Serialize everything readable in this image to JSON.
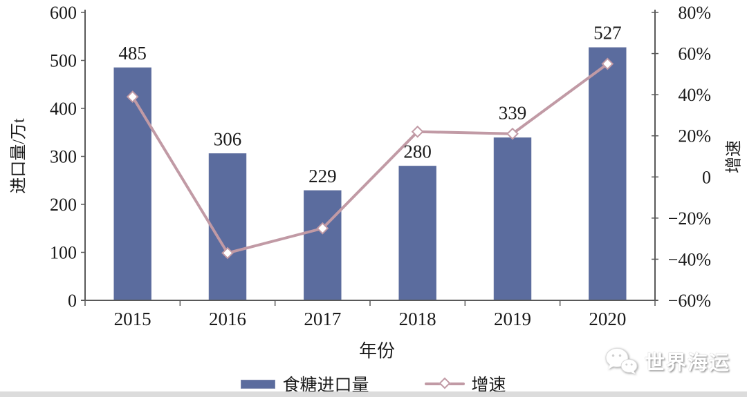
{
  "chart_data": {
    "type": "combo-bar-line",
    "title": "",
    "categories": [
      "2015",
      "2016",
      "2017",
      "2018",
      "2019",
      "2020"
    ],
    "series": [
      {
        "name": "食糖进口量",
        "type": "bar",
        "axis": "left",
        "unit": "万t",
        "values": [
          485,
          306,
          229,
          280,
          339,
          527
        ],
        "color": "#5b6c9e"
      },
      {
        "name": "增速",
        "type": "line",
        "axis": "right",
        "unit": "%",
        "values": [
          39,
          -37,
          -25,
          22,
          21,
          55
        ],
        "color": "#c19aa5",
        "marker": "diamond",
        "marker_fill": "#ffffff"
      }
    ],
    "bar_labels": [
      "485",
      "306",
      "229",
      "280",
      "339",
      "527"
    ],
    "x_axis": {
      "label": "年份"
    },
    "left_axis": {
      "label": "进口量/万t",
      "min": 0,
      "max": 600,
      "tick_values": [
        600,
        500,
        400,
        300,
        200,
        100,
        0
      ],
      "tick_labels": [
        "600",
        "500",
        "400",
        "300",
        "200",
        "100",
        "0"
      ]
    },
    "right_axis": {
      "label": "增速",
      "min": -60,
      "max": 80,
      "tick_values": [
        80,
        60,
        40,
        20,
        0,
        -20,
        -40,
        -60
      ],
      "tick_labels": [
        "80%",
        "60%",
        "40%",
        "20%",
        "0",
        "−20%",
        "−40%",
        "−60%"
      ]
    },
    "grid": false,
    "legend_position": "bottom"
  },
  "legend": {
    "items": [
      {
        "label": "食糖进口量",
        "swatch": "bar"
      },
      {
        "label": "增速",
        "swatch": "line-diamond"
      }
    ]
  },
  "watermark": {
    "text": "世界海运",
    "icon": "wechat-icon"
  },
  "colors": {
    "bar": "#5b6c9e",
    "line": "#c19aa5",
    "axis": "#595959",
    "text": "#1a1a1a",
    "footer_strip": "#dcdcdc"
  }
}
